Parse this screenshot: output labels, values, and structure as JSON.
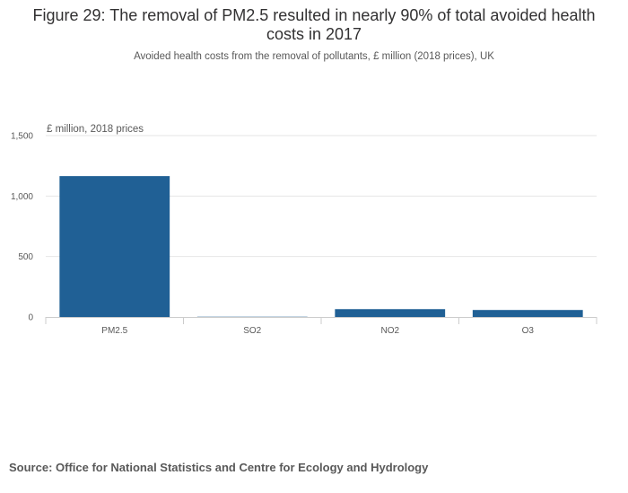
{
  "title": "Figure 29: The removal of PM2.5 resulted in nearly 90% of total avoided health costs in 2017",
  "subtitle": "Avoided health costs from the removal of pollutants, £ million (2018 prices), UK",
  "source": "Source: Office for National Statistics and Centre for Ecology and Hydrology",
  "chart_data": {
    "type": "bar",
    "categories": [
      "PM2.5",
      "SO2",
      "NO2",
      "O3"
    ],
    "values": [
      1165,
      2,
      65,
      58
    ],
    "ylabel": "£ million, 2018 prices",
    "ylim": [
      0,
      1500
    ],
    "yticks": [
      0,
      500,
      1000,
      1500
    ],
    "ytick_labels": [
      "0",
      "500",
      "1,000",
      "1,500"
    ],
    "grid": true,
    "bar_color": "#206095"
  }
}
